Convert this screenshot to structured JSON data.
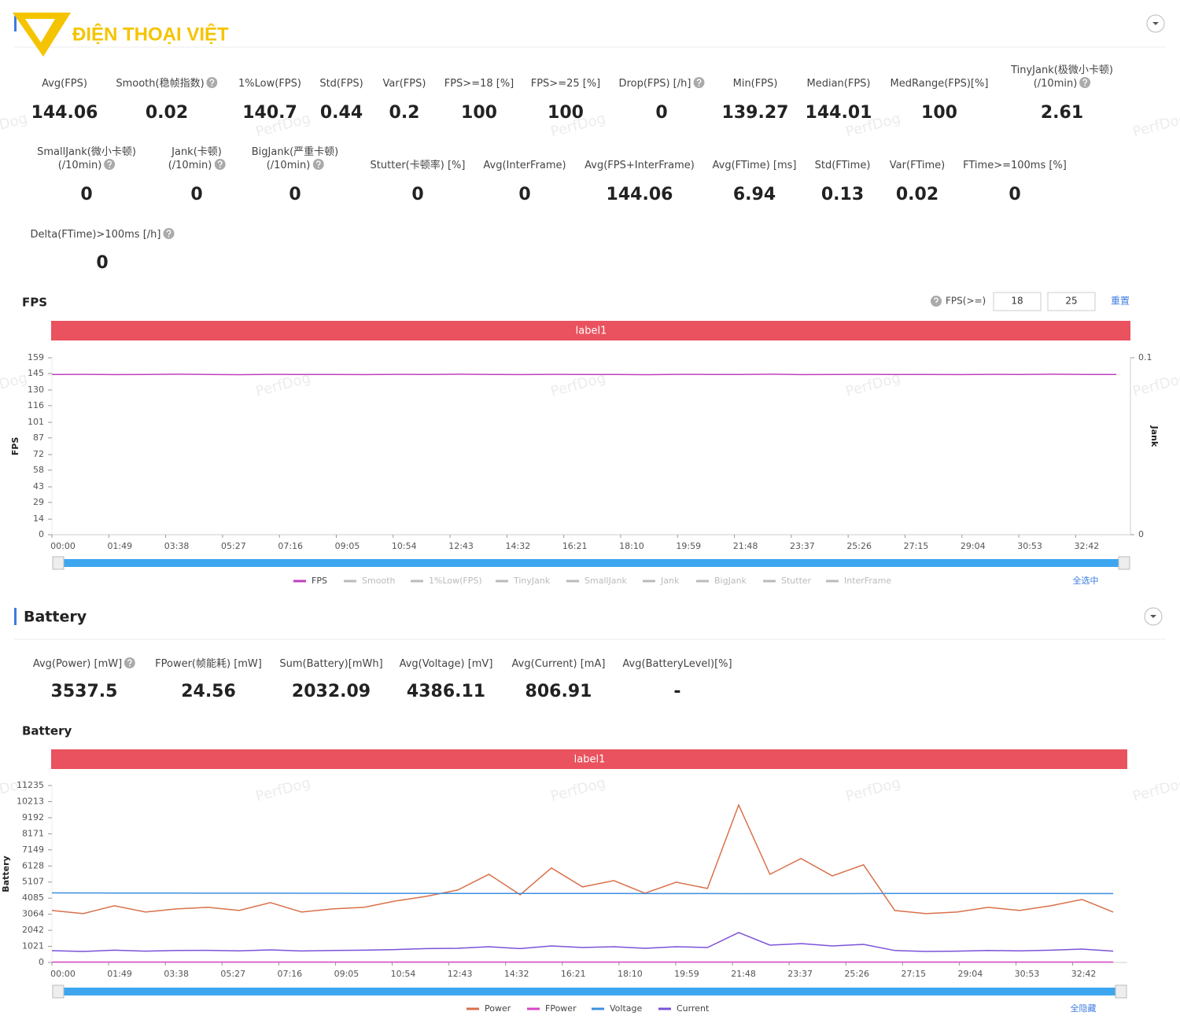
{
  "logo_text": "ĐIỆN THOẠI VIỆT",
  "watermark": "PerfDog",
  "fps_section": {
    "title": "FPS",
    "metrics": [
      [
        {
          "label": "Avg(FPS)",
          "value": 144.06
        },
        {
          "label": "Smooth(稳帧指数)",
          "value": 0.02,
          "help": true
        },
        {
          "label": "1%Low(FPS)",
          "value": 140.7
        },
        {
          "label": "Std(FPS)",
          "value": 0.44
        },
        {
          "label": "Var(FPS)",
          "value": 0.2
        },
        {
          "label": "FPS>=18 [%]",
          "value": 100
        },
        {
          "label": "FPS>=25 [%]",
          "value": 100
        },
        {
          "label": "Drop(FPS) [/h]",
          "value": 0,
          "help": true
        },
        {
          "label": "Min(FPS)",
          "value": 139.27
        },
        {
          "label": "Median(FPS)",
          "value": 144.01
        },
        {
          "label": "MedRange(FPS)[%]",
          "value": 100
        },
        {
          "label": "TinyJank(极微小卡顿)\n(/10min)",
          "value": 2.61,
          "help": true
        }
      ],
      [
        {
          "label": "SmallJank(微小卡顿)\n(/10min)",
          "value": 0,
          "help": true
        },
        {
          "label": "Jank(卡顿)\n(/10min)",
          "value": 0,
          "help": true
        },
        {
          "label": "BigJank(严重卡顿)\n(/10min)",
          "value": 0,
          "help": true
        },
        {
          "label": "Stutter(卡顿率) [%]",
          "value": 0
        },
        {
          "label": "Avg(InterFrame)",
          "value": 0
        },
        {
          "label": "Avg(FPS+InterFrame)",
          "value": 144.06
        },
        {
          "label": "Avg(FTime) [ms]",
          "value": 6.94
        },
        {
          "label": "Std(FTime)",
          "value": 0.13
        },
        {
          "label": "Var(FTime)",
          "value": 0.02
        },
        {
          "label": "FTime>=100ms [%]",
          "value": 0
        }
      ],
      [
        {
          "label": "Delta(FTime)>100ms [/h]",
          "value": 0,
          "help": true
        }
      ]
    ]
  },
  "fps_controls": {
    "label": "FPS(>=)",
    "thresholds": [
      18,
      25
    ],
    "reset": "重置"
  },
  "battery_section": {
    "title": "Battery",
    "metrics": [
      [
        {
          "label": "Avg(Power) [mW]",
          "value": 3537.5,
          "help": true
        },
        {
          "label": "FPower(帧能耗) [mW]",
          "value": 24.56
        },
        {
          "label": "Sum(Battery)[mWh]",
          "value": 2032.09
        },
        {
          "label": "Avg(Voltage) [mV]",
          "value": 4386.11
        },
        {
          "label": "Avg(Current) [mA]",
          "value": 806.91
        },
        {
          "label": "Avg(BatteryLevel)[%]",
          "value": "-"
        }
      ]
    ]
  },
  "chart_data": [
    {
      "type": "line",
      "title": "FPS",
      "banner": "label1",
      "ylabel": "FPS",
      "y2label": "Jank",
      "x": [
        0,
        60,
        120,
        180,
        240,
        300,
        360,
        420,
        480,
        540,
        600,
        660,
        720,
        780,
        840,
        900,
        960,
        1020,
        1080,
        1140,
        1200,
        1260,
        1320,
        1380,
        1440,
        1500,
        1560,
        1620,
        1680,
        1740,
        1800,
        1860,
        1920,
        1980,
        2040
      ],
      "xlim": [
        0,
        2067
      ],
      "xticks": [
        {
          "value": 0,
          "label": "00:00"
        },
        {
          "value": 109,
          "label": "01:49"
        },
        {
          "value": 218,
          "label": "03:38"
        },
        {
          "value": 327,
          "label": "05:27"
        },
        {
          "value": 436,
          "label": "07:16"
        },
        {
          "value": 545,
          "label": "09:05"
        },
        {
          "value": 654,
          "label": "10:54"
        },
        {
          "value": 763,
          "label": "12:43"
        },
        {
          "value": 872,
          "label": "14:32"
        },
        {
          "value": 981,
          "label": "16:21"
        },
        {
          "value": 1090,
          "label": "18:10"
        },
        {
          "value": 1199,
          "label": "19:59"
        },
        {
          "value": 1308,
          "label": "21:48"
        },
        {
          "value": 1417,
          "label": "23:37"
        },
        {
          "value": 1526,
          "label": "25:26"
        },
        {
          "value": 1635,
          "label": "27:15"
        },
        {
          "value": 1744,
          "label": "29:04"
        },
        {
          "value": 1853,
          "label": "30:53"
        },
        {
          "value": 1962,
          "label": "32:42"
        }
      ],
      "ylim": [
        0,
        159
      ],
      "yticks": [
        0,
        14,
        29,
        43,
        58,
        72,
        87,
        101,
        116,
        130,
        145,
        159
      ],
      "y2lim": [
        0,
        0.1
      ],
      "y2ticks": [
        0,
        0.1
      ],
      "series": [
        {
          "name": "FPS",
          "color": "#c23fbe",
          "values": [
            144,
            144.1,
            143.9,
            144,
            144.2,
            144,
            143.8,
            144.1,
            144,
            144,
            143.9,
            144.1,
            144,
            144.2,
            144,
            143.9,
            144.1,
            144,
            144,
            143.8,
            144.1,
            144,
            144,
            144.2,
            143.9,
            144,
            144.1,
            144,
            144,
            143.9,
            144.1,
            144,
            144.2,
            144,
            144
          ]
        }
      ],
      "legend_inactive": [
        "Smooth",
        "1%Low(FPS)",
        "TinyJank",
        "SmallJank",
        "Jank",
        "BigJank",
        "Stutter",
        "InterFrame"
      ],
      "legend_toggle": "全选中"
    },
    {
      "type": "line",
      "title": "Battery",
      "banner": "label1",
      "ylabel": "Battery",
      "x": [
        0,
        60,
        120,
        180,
        240,
        300,
        360,
        420,
        480,
        540,
        600,
        660,
        720,
        780,
        840,
        900,
        960,
        1020,
        1080,
        1140,
        1200,
        1260,
        1320,
        1380,
        1440,
        1500,
        1560,
        1620,
        1680,
        1740,
        1800,
        1860,
        1920,
        1980,
        2040
      ],
      "xlim": [
        0,
        2067
      ],
      "xticks": [
        {
          "value": 0,
          "label": "00:00"
        },
        {
          "value": 109,
          "label": "01:49"
        },
        {
          "value": 218,
          "label": "03:38"
        },
        {
          "value": 327,
          "label": "05:27"
        },
        {
          "value": 436,
          "label": "07:16"
        },
        {
          "value": 545,
          "label": "09:05"
        },
        {
          "value": 654,
          "label": "10:54"
        },
        {
          "value": 763,
          "label": "12:43"
        },
        {
          "value": 872,
          "label": "14:32"
        },
        {
          "value": 981,
          "label": "16:21"
        },
        {
          "value": 1090,
          "label": "18:10"
        },
        {
          "value": 1199,
          "label": "19:59"
        },
        {
          "value": 1308,
          "label": "21:48"
        },
        {
          "value": 1417,
          "label": "23:37"
        },
        {
          "value": 1526,
          "label": "25:26"
        },
        {
          "value": 1635,
          "label": "27:15"
        },
        {
          "value": 1744,
          "label": "29:04"
        },
        {
          "value": 1853,
          "label": "30:53"
        },
        {
          "value": 1962,
          "label": "32:42"
        }
      ],
      "ylim": [
        0,
        11235
      ],
      "yticks": [
        0,
        1021,
        2042,
        3064,
        4085,
        5107,
        6128,
        7149,
        8171,
        9192,
        10213,
        11235
      ],
      "series": [
        {
          "name": "Power",
          "color": "#d9714b",
          "values": [
            3300,
            3100,
            3600,
            3200,
            3400,
            3500,
            3300,
            3800,
            3200,
            3400,
            3500,
            3900,
            4200,
            4600,
            5600,
            4300,
            6000,
            4800,
            5200,
            4400,
            5100,
            4700,
            10000,
            5600,
            6600,
            5500,
            6200,
            3300,
            3100,
            3200,
            3500,
            3300,
            3600,
            4000,
            3200
          ]
        },
        {
          "name": "FPower",
          "color": "#d946c6",
          "values": [
            25,
            24,
            26,
            25,
            24,
            25,
            26,
            25,
            24,
            25,
            25,
            26,
            25,
            24,
            25,
            26,
            25,
            24,
            25,
            25,
            26,
            25,
            24,
            25,
            26,
            25,
            24,
            25,
            25,
            24,
            26,
            25,
            24,
            25,
            25
          ]
        },
        {
          "name": "Voltage",
          "color": "#3d8fe0",
          "values": [
            4420,
            4415,
            4410,
            4410,
            4405,
            4400,
            4400,
            4400,
            4395,
            4395,
            4390,
            4390,
            4390,
            4385,
            4385,
            4380,
            4380,
            4380,
            4380,
            4375,
            4375,
            4375,
            4370,
            4370,
            4370,
            4370,
            4375,
            4380,
            4380,
            4380,
            4380,
            4380,
            4380,
            4375,
            4375
          ]
        },
        {
          "name": "Current",
          "color": "#7b52d9",
          "values": [
            750,
            700,
            780,
            720,
            760,
            770,
            740,
            800,
            730,
            760,
            780,
            820,
            880,
            900,
            1000,
            880,
            1050,
            950,
            1000,
            900,
            1000,
            950,
            1900,
            1100,
            1200,
            1050,
            1150,
            760,
            700,
            720,
            760,
            740,
            780,
            850,
            720
          ]
        }
      ],
      "legend_toggle": "全隐藏"
    }
  ]
}
